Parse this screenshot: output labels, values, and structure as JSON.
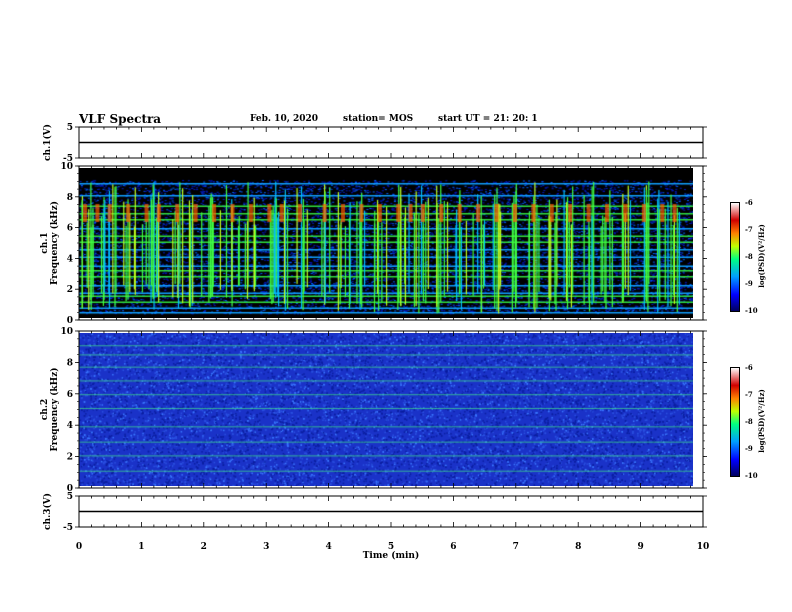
{
  "header": {
    "title": "VLF Spectra",
    "date": "Feb. 10, 2020",
    "station": "station= MOS",
    "start_time": "start  UT =   21: 20: 1"
  },
  "colors": {
    "plot_background_ch1": "#000000",
    "plot_background_ch2": "#1a32c8",
    "trace_line": "#000000",
    "emission_green": "#40ff40",
    "emission_cyan": "#00c0ff"
  },
  "chart_data": [
    {
      "type": "line",
      "panel": "ch1-waveform",
      "ylabel": "ch.1(V)",
      "ylim": [
        -5,
        5
      ],
      "yticks": [
        "5",
        "-5"
      ],
      "x": [
        0,
        10
      ],
      "values": [
        0,
        0
      ]
    },
    {
      "type": "heatmap",
      "panel": "ch1-spectrogram",
      "ylabel_line1": "ch.1",
      "ylabel_line2": "Frequency (kHz)",
      "ylim": [
        0,
        10
      ],
      "yticks": [
        "0",
        "2",
        "4",
        "6",
        "8",
        "10"
      ],
      "xlim": [
        0,
        10
      ],
      "colorbar": {
        "ticks": [
          "-6",
          "-7",
          "-8",
          "-9",
          "-10"
        ],
        "label": "log(PSD)(V²/Hz)",
        "range": [
          -10,
          -6
        ]
      },
      "horizontal_lines_khz": [
        0.4,
        0.7,
        1.1,
        1.5,
        1.7,
        2.2,
        2.8,
        3.2,
        3.5,
        4.1,
        4.6,
        5.1,
        5.5,
        6.0,
        6.6,
        7.0,
        7.5,
        8.2,
        9.0
      ],
      "burst_times_min": [
        0.1,
        0.3,
        0.5,
        0.8,
        1.1,
        1.3,
        1.6,
        1.9,
        2.2,
        2.5,
        2.8,
        3.1,
        3.3,
        3.6,
        4.0,
        4.3,
        4.6,
        4.9,
        5.2,
        5.4,
        5.6,
        5.9,
        6.2,
        6.5,
        6.8,
        7.1,
        7.4,
        7.7,
        8.0,
        8.3,
        8.6,
        8.9,
        9.2,
        9.5,
        9.7
      ]
    },
    {
      "type": "heatmap",
      "panel": "ch2-spectrogram",
      "ylabel_line1": "ch.2",
      "ylabel_line2": "Frequency (kHz)",
      "ylim": [
        0,
        10
      ],
      "yticks": [
        "0",
        "2",
        "4",
        "6",
        "8",
        "10"
      ],
      "xlim": [
        0,
        10
      ],
      "colorbar": {
        "ticks": [
          "-6",
          "-7",
          "-8",
          "-9",
          "-10"
        ],
        "label": "log(PSD)(V²/Hz)",
        "range": [
          -10,
          -6
        ]
      },
      "horizontal_lines_khz": [
        1.0,
        2.0,
        2.9,
        3.9,
        5.1,
        6.0,
        6.9,
        7.8,
        8.6,
        9.2
      ]
    },
    {
      "type": "line",
      "panel": "ch3-waveform",
      "ylabel": "ch.3(V)",
      "ylim": [
        -5,
        5
      ],
      "yticks": [
        "5",
        "-5"
      ],
      "xlabel": "Time (min)",
      "xticks": [
        "0",
        "1",
        "2",
        "3",
        "4",
        "5",
        "6",
        "7",
        "8",
        "9",
        "10"
      ],
      "xlim": [
        0,
        10
      ],
      "x": [
        0,
        10
      ],
      "values": [
        0,
        0
      ]
    }
  ]
}
